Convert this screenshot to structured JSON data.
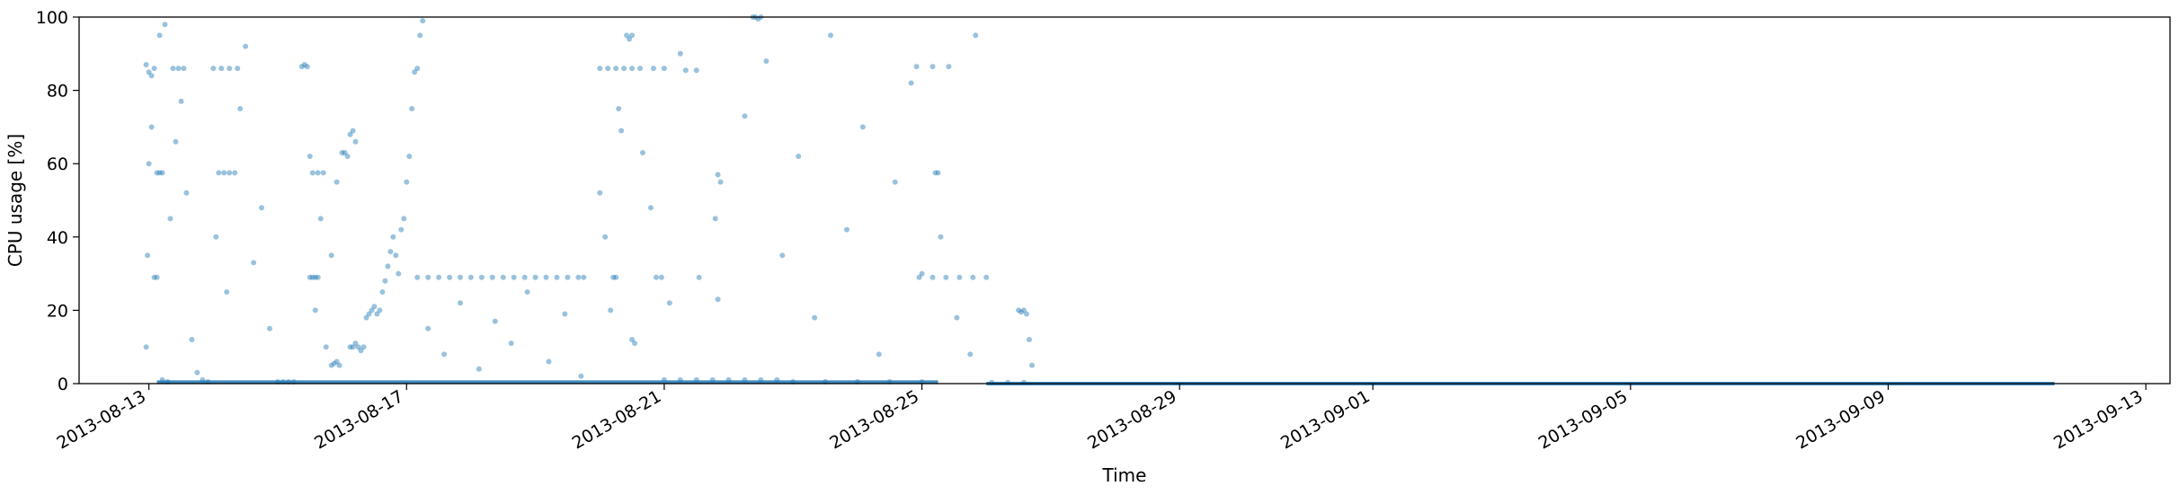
{
  "chart_data": {
    "type": "scatter",
    "title": "",
    "xlabel": "Time",
    "ylabel": "CPU usage [%]",
    "x_type": "date",
    "xlim": [
      "2013-08-11T22:00",
      "2013-09-13T09:00"
    ],
    "ylim": [
      0,
      100
    ],
    "x_ticks": [
      "2013-08-13",
      "2013-08-17",
      "2013-08-21",
      "2013-08-25",
      "2013-08-29",
      "2013-09-01",
      "2013-09-05",
      "2013-09-09",
      "2013-09-13"
    ],
    "y_ticks": [
      "0",
      "20",
      "40",
      "60",
      "80",
      "100"
    ],
    "grid": false,
    "legend": "none",
    "marker_color": "#1f77b4",
    "marker_alpha": 0.45,
    "series": [
      {
        "points": [
          [
            "2013-08-12T23:00",
            87
          ],
          [
            "2013-08-13T00:00",
            85
          ],
          [
            "2013-08-13T01:00",
            84
          ],
          [
            "2013-08-13T02:00",
            86
          ],
          [
            "2013-08-13T03:00",
            57.5
          ],
          [
            "2013-08-13T04:00",
            57.5
          ],
          [
            "2013-08-13T05:00",
            57.5
          ],
          [
            "2013-08-13T02:00",
            29
          ],
          [
            "2013-08-13T03:00",
            29
          ],
          [
            "2013-08-13T00:00",
            60
          ],
          [
            "2013-08-13T01:00",
            70
          ],
          [
            "2013-08-13T04:00",
            95
          ],
          [
            "2013-08-13T06:00",
            98
          ],
          [
            "2013-08-13T08:00",
            45
          ],
          [
            "2013-08-13T10:00",
            66
          ],
          [
            "2013-08-13T12:00",
            77
          ],
          [
            "2013-08-13T14:00",
            52
          ],
          [
            "2013-08-13T16:00",
            12
          ],
          [
            "2013-08-13T18:00",
            3
          ],
          [
            "2013-08-13T20:00",
            1
          ],
          [
            "2013-08-13T22:00",
            0.5
          ],
          [
            "2013-08-12T23:00",
            10
          ],
          [
            "2013-08-12T23:30",
            35
          ],
          [
            "2013-08-13T05:00",
            1
          ],
          [
            "2013-08-13T07:00",
            0.5
          ],
          [
            "2013-08-13T09:00",
            86
          ],
          [
            "2013-08-13T11:00",
            86
          ],
          [
            "2013-08-13T13:00",
            86
          ],
          [
            "2013-08-14T02:00",
            57.5
          ],
          [
            "2013-08-14T04:00",
            57.5
          ],
          [
            "2013-08-14T06:00",
            57.5
          ],
          [
            "2013-08-14T08:00",
            57.5
          ],
          [
            "2013-08-14T00:00",
            86
          ],
          [
            "2013-08-14T03:00",
            86
          ],
          [
            "2013-08-14T06:00",
            86
          ],
          [
            "2013-08-14T09:00",
            86
          ],
          [
            "2013-08-14T01:00",
            40
          ],
          [
            "2013-08-14T05:00",
            25
          ],
          [
            "2013-08-14T10:00",
            75
          ],
          [
            "2013-08-14T12:00",
            92
          ],
          [
            "2013-08-14T15:00",
            33
          ],
          [
            "2013-08-14T18:00",
            48
          ],
          [
            "2013-08-14T21:00",
            15
          ],
          [
            "2013-08-15T00:00",
            0.5
          ],
          [
            "2013-08-15T02:00",
            0.5
          ],
          [
            "2013-08-15T04:00",
            0.5
          ],
          [
            "2013-08-15T06:00",
            0.5
          ],
          [
            "2013-08-15T09:00",
            86.5
          ],
          [
            "2013-08-15T10:00",
            87
          ],
          [
            "2013-08-15T11:00",
            86.5
          ],
          [
            "2013-08-15T12:00",
            29
          ],
          [
            "2013-08-15T13:00",
            29
          ],
          [
            "2013-08-15T14:00",
            29
          ],
          [
            "2013-08-15T15:00",
            29
          ],
          [
            "2013-08-15T13:00",
            57.5
          ],
          [
            "2013-08-15T15:00",
            57.5
          ],
          [
            "2013-08-15T17:00",
            57.5
          ],
          [
            "2013-08-15T12:00",
            62
          ],
          [
            "2013-08-15T14:00",
            20
          ],
          [
            "2013-08-15T16:00",
            45
          ],
          [
            "2013-08-15T18:00",
            10
          ],
          [
            "2013-08-15T20:00",
            35
          ],
          [
            "2013-08-15T22:00",
            55
          ],
          [
            "2013-08-16T00:00",
            63
          ],
          [
            "2013-08-16T01:00",
            63
          ],
          [
            "2013-08-16T02:00",
            62
          ],
          [
            "2013-08-16T03:00",
            68
          ],
          [
            "2013-08-16T04:00",
            69
          ],
          [
            "2013-08-16T05:00",
            66
          ],
          [
            "2013-08-15T20:00",
            5
          ],
          [
            "2013-08-15T21:00",
            5.5
          ],
          [
            "2013-08-15T22:00",
            6
          ],
          [
            "2013-08-15T23:00",
            5
          ],
          [
            "2013-08-16T03:00",
            10
          ],
          [
            "2013-08-16T04:00",
            10
          ],
          [
            "2013-08-16T05:00",
            11
          ],
          [
            "2013-08-16T06:00",
            10
          ],
          [
            "2013-08-16T07:00",
            9
          ],
          [
            "2013-08-16T08:00",
            10
          ],
          [
            "2013-08-16T09:00",
            18
          ],
          [
            "2013-08-16T10:00",
            19
          ],
          [
            "2013-08-16T11:00",
            20
          ],
          [
            "2013-08-16T12:00",
            21
          ],
          [
            "2013-08-16T13:00",
            19
          ],
          [
            "2013-08-16T14:00",
            20
          ],
          [
            "2013-08-16T15:00",
            25
          ],
          [
            "2013-08-16T16:00",
            28
          ],
          [
            "2013-08-16T17:00",
            32
          ],
          [
            "2013-08-16T18:00",
            36
          ],
          [
            "2013-08-16T19:00",
            40
          ],
          [
            "2013-08-16T20:00",
            35
          ],
          [
            "2013-08-16T21:00",
            30
          ],
          [
            "2013-08-16T22:00",
            42
          ],
          [
            "2013-08-16T23:00",
            45
          ],
          [
            "2013-08-17T00:00",
            55
          ],
          [
            "2013-08-17T01:00",
            62
          ],
          [
            "2013-08-17T02:00",
            75
          ],
          [
            "2013-08-17T03:00",
            85
          ],
          [
            "2013-08-17T04:00",
            86
          ],
          [
            "2013-08-17T05:00",
            95
          ],
          [
            "2013-08-17T06:00",
            99
          ],
          [
            "2013-08-17T04:00",
            29
          ],
          [
            "2013-08-17T08:00",
            29
          ],
          [
            "2013-08-17T12:00",
            29
          ],
          [
            "2013-08-17T16:00",
            29
          ],
          [
            "2013-08-17T20:00",
            29
          ],
          [
            "2013-08-18T00:00",
            29
          ],
          [
            "2013-08-18T04:00",
            29
          ],
          [
            "2013-08-18T08:00",
            29
          ],
          [
            "2013-08-18T12:00",
            29
          ],
          [
            "2013-08-18T16:00",
            29
          ],
          [
            "2013-08-18T20:00",
            29
          ],
          [
            "2013-08-19T00:00",
            29
          ],
          [
            "2013-08-19T04:00",
            29
          ],
          [
            "2013-08-19T08:00",
            29
          ],
          [
            "2013-08-19T12:00",
            29
          ],
          [
            "2013-08-19T16:00",
            29
          ],
          [
            "2013-08-19T18:00",
            29
          ],
          [
            "2013-08-17T08:00",
            15
          ],
          [
            "2013-08-17T14:00",
            8
          ],
          [
            "2013-08-17T20:00",
            22
          ],
          [
            "2013-08-18T03:00",
            4
          ],
          [
            "2013-08-18T09:00",
            17
          ],
          [
            "2013-08-18T15:00",
            11
          ],
          [
            "2013-08-18T21:00",
            25
          ],
          [
            "2013-08-19T05:00",
            6
          ],
          [
            "2013-08-19T11:00",
            19
          ],
          [
            "2013-08-19T17:00",
            2
          ],
          [
            "2013-08-20T00:00",
            86
          ],
          [
            "2013-08-20T03:00",
            86
          ],
          [
            "2013-08-20T06:00",
            86
          ],
          [
            "2013-08-20T09:00",
            86
          ],
          [
            "2013-08-20T12:00",
            86
          ],
          [
            "2013-08-20T15:00",
            86
          ],
          [
            "2013-08-20T20:00",
            86
          ],
          [
            "2013-08-21T00:00",
            86
          ],
          [
            "2013-08-21T08:00",
            85.5
          ],
          [
            "2013-08-21T12:00",
            85.5
          ],
          [
            "2013-08-20T10:00",
            95
          ],
          [
            "2013-08-20T11:00",
            94
          ],
          [
            "2013-08-20T12:00",
            95
          ],
          [
            "2013-08-20T08:00",
            69
          ],
          [
            "2013-08-20T05:00",
            29
          ],
          [
            "2013-08-20T06:00",
            29
          ],
          [
            "2013-08-20T21:00",
            29
          ],
          [
            "2013-08-20T23:00",
            29
          ],
          [
            "2013-08-21T13:00",
            29
          ],
          [
            "2013-08-20T12:00",
            12
          ],
          [
            "2013-08-20T13:00",
            11
          ],
          [
            "2013-08-20T00:00",
            52
          ],
          [
            "2013-08-20T02:00",
            40
          ],
          [
            "2013-08-20T04:00",
            20
          ],
          [
            "2013-08-20T07:00",
            75
          ],
          [
            "2013-08-20T16:00",
            63
          ],
          [
            "2013-08-20T19:00",
            48
          ],
          [
            "2013-08-21T02:00",
            22
          ],
          [
            "2013-08-21T06:00",
            90
          ],
          [
            "2013-08-21T00:00",
            1
          ],
          [
            "2013-08-21T06:00",
            1
          ],
          [
            "2013-08-21T12:00",
            1
          ],
          [
            "2013-08-21T18:00",
            1
          ],
          [
            "2013-08-22T00:00",
            1
          ],
          [
            "2013-08-22T06:00",
            1
          ],
          [
            "2013-08-22T12:00",
            1
          ],
          [
            "2013-08-22T18:00",
            1
          ],
          [
            "2013-08-21T20:00",
            57
          ],
          [
            "2013-08-21T21:00",
            55
          ],
          [
            "2013-08-21T20:00",
            23
          ],
          [
            "2013-08-21T19:00",
            45
          ],
          [
            "2013-08-22T09:00",
            100
          ],
          [
            "2013-08-22T10:00",
            100
          ],
          [
            "2013-08-22T11:00",
            99.5
          ],
          [
            "2013-08-22T12:00",
            100
          ],
          [
            "2013-08-22T06:00",
            73
          ],
          [
            "2013-08-22T14:00",
            88
          ],
          [
            "2013-08-22T20:00",
            35
          ],
          [
            "2013-08-23T02:00",
            62
          ],
          [
            "2013-08-23T08:00",
            18
          ],
          [
            "2013-08-23T14:00",
            95
          ],
          [
            "2013-08-23T20:00",
            42
          ],
          [
            "2013-08-24T02:00",
            70
          ],
          [
            "2013-08-24T08:00",
            8
          ],
          [
            "2013-08-24T14:00",
            55
          ],
          [
            "2013-08-24T20:00",
            82
          ],
          [
            "2013-08-25T00:00",
            30
          ],
          [
            "2013-08-23T00:00",
            0.5
          ],
          [
            "2013-08-23T12:00",
            0.5
          ],
          [
            "2013-08-24T00:00",
            0.5
          ],
          [
            "2013-08-24T12:00",
            0.5
          ],
          [
            "2013-08-25T00:00",
            0.5
          ],
          [
            "2013-08-24T22:00",
            86.5
          ],
          [
            "2013-08-25T04:00",
            86.5
          ],
          [
            "2013-08-25T10:00",
            86.5
          ],
          [
            "2013-08-25T05:00",
            57.5
          ],
          [
            "2013-08-25T06:00",
            57.5
          ],
          [
            "2013-08-24T23:00",
            29
          ],
          [
            "2013-08-25T04:00",
            29
          ],
          [
            "2013-08-25T09:00",
            29
          ],
          [
            "2013-08-25T14:00",
            29
          ],
          [
            "2013-08-25T19:00",
            29
          ],
          [
            "2013-08-26T00:00",
            29
          ],
          [
            "2013-08-25T07:00",
            40
          ],
          [
            "2013-08-25T13:00",
            18
          ],
          [
            "2013-08-25T18:00",
            8
          ],
          [
            "2013-08-25T20:00",
            95
          ],
          [
            "2013-08-26T02:00",
            0.3
          ],
          [
            "2013-08-26T08:00",
            0.3
          ],
          [
            "2013-08-26T14:00",
            0.3
          ],
          [
            "2013-08-26T12:00",
            20
          ],
          [
            "2013-08-26T13:00",
            19.5
          ],
          [
            "2013-08-26T14:00",
            20
          ],
          [
            "2013-08-26T15:00",
            19
          ],
          [
            "2013-08-26T16:00",
            12
          ],
          [
            "2013-08-26T17:00",
            5
          ]
        ]
      }
    ],
    "baseline_segments": [
      {
        "from": "2013-08-13T03:00",
        "to": "2013-08-25T06:00",
        "y": 0.4
      },
      {
        "from": "2013-08-26T00:00",
        "to": "2013-09-11T14:00",
        "y": 0
      }
    ]
  }
}
